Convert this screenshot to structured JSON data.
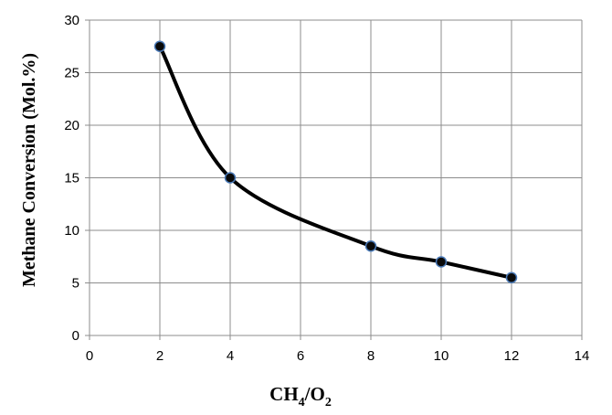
{
  "chart_data": {
    "type": "line",
    "xlabel_main": "CH",
    "xlabel_sub1": "4",
    "xlabel_mid": "/O",
    "xlabel_sub2": "2",
    "ylabel": "Methane Conversion (Mol.%)",
    "xlim": [
      0,
      14
    ],
    "ylim": [
      0,
      30
    ],
    "x_ticks": [
      0,
      2,
      4,
      6,
      8,
      10,
      12,
      14
    ],
    "y_ticks": [
      0,
      5,
      10,
      15,
      20,
      25,
      30
    ],
    "grid": true,
    "series": [
      {
        "x": [
          2,
          4,
          8,
          10,
          12
        ],
        "y": [
          27.5,
          15,
          8.5,
          7,
          5.5
        ],
        "smooth": true,
        "color": "#000000",
        "marker_color": "#0a0a0a",
        "marker_edge_color": "#4a7ab8"
      }
    ]
  }
}
